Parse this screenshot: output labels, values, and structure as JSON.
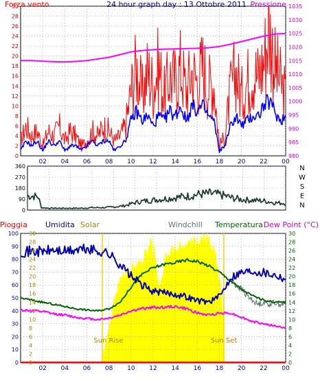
{
  "header": {
    "title": "24 hour graph day : 13 Ottobre 2011",
    "left_label": "Forza vento",
    "right_label": "Pressione"
  },
  "colors": {
    "wind": "#ff0000",
    "wind_avg": "#0000ff",
    "pressure": "#ff00ff",
    "left_axis": "#cc0000",
    "right_axis": "#cc00cc",
    "title": "#000080",
    "direction": "#1e3d32",
    "rain": "#ff0000",
    "humidity": "#0000b0",
    "solar": "#ffff00",
    "solar_label": "#b08000",
    "windchill": "#607070",
    "temperature": "#006400",
    "dewpoint": "#ff00ff",
    "gridline": "#909090",
    "time_axis": "#000080"
  },
  "chart_data": [
    {
      "type": "line",
      "name": "wind-pressure",
      "title": "24 hour graph day : 13 Ottobre 2011",
      "ylabel_left": "Forza vento",
      "ylabel_right": "Pressione",
      "x_ticks": [
        "02",
        "04",
        "06",
        "08",
        "10",
        "12",
        "14",
        "16",
        "18",
        "20",
        "22",
        "00"
      ],
      "x_range_hours": [
        0,
        24
      ],
      "y_left_ticks": [
        "0",
        "2",
        "4",
        "6",
        "8",
        "10",
        "12",
        "14",
        "16",
        "18",
        "20",
        "22",
        "24",
        "26",
        "28",
        "30"
      ],
      "ylim_left": [
        0,
        30
      ],
      "y_right_ticks": [
        "980",
        "985",
        "990",
        "995",
        "1000",
        "1005",
        "1010",
        "1015",
        "1020",
        "1025",
        "1030",
        "1035"
      ],
      "ylim_right": [
        980,
        1035
      ],
      "grid": true,
      "series": [
        {
          "key": "gust",
          "hours": [
            0,
            0.5,
            1,
            1.5,
            2,
            2.5,
            3,
            3.5,
            4,
            4.5,
            5,
            5.5,
            6,
            6.5,
            7,
            7.5,
            8,
            8.5,
            9,
            9.5,
            10,
            10.5,
            11,
            11.5,
            12,
            12.5,
            13,
            13.5,
            14,
            14.5,
            15,
            15.5,
            16,
            16.5,
            17,
            17.5,
            18,
            18.5,
            19,
            19.5,
            20,
            20.5,
            21,
            21.5,
            22,
            22.5,
            23,
            23.5,
            24
          ],
          "values": [
            3,
            6,
            4,
            5,
            2,
            5,
            4,
            6,
            3,
            5,
            4,
            2,
            3,
            5,
            4,
            6,
            5,
            3,
            4,
            6,
            13,
            18,
            12,
            17,
            14,
            18,
            12,
            16,
            15,
            18,
            13,
            17,
            15,
            18,
            14,
            15,
            2,
            4,
            13,
            17,
            12,
            15,
            17,
            16,
            19,
            26,
            18,
            15,
            12
          ]
        },
        {
          "key": "average",
          "hours": [
            0,
            0.5,
            1,
            1.5,
            2,
            2.5,
            3,
            3.5,
            4,
            4.5,
            5,
            5.5,
            6,
            6.5,
            7,
            7.5,
            8,
            8.5,
            9,
            9.5,
            10,
            10.5,
            11,
            11.5,
            12,
            12.5,
            13,
            13.5,
            14,
            14.5,
            15,
            15.5,
            16,
            16.5,
            17,
            17.5,
            18,
            18.5,
            19,
            19.5,
            20,
            20.5,
            21,
            21.5,
            22,
            22.5,
            23,
            23.5,
            24
          ],
          "values": [
            1,
            3,
            2,
            3,
            1,
            3,
            2,
            3,
            1,
            2,
            2,
            1,
            2,
            3,
            2,
            3,
            3,
            1,
            2,
            3,
            7,
            9,
            7,
            8,
            6,
            8,
            7,
            9,
            8,
            10,
            7,
            10,
            9,
            10,
            8,
            7,
            1,
            2,
            6,
            8,
            6,
            7,
            8,
            8,
            10,
            11,
            9,
            7,
            8
          ]
        },
        {
          "key": "pressure",
          "axis": "right",
          "hours": [
            0,
            1,
            2,
            3,
            4,
            5,
            6,
            7,
            8,
            9,
            10,
            11,
            12,
            13,
            14,
            15,
            16,
            17,
            18,
            19,
            20,
            21,
            22,
            23,
            24
          ],
          "values": [
            1015,
            1015,
            1014.8,
            1014.6,
            1014.5,
            1014.7,
            1015,
            1015.6,
            1016.2,
            1017.2,
            1018.2,
            1018.7,
            1019,
            1019.2,
            1019.3,
            1019.4,
            1019.5,
            1019.7,
            1020.2,
            1021,
            1022,
            1023,
            1024,
            1024.7,
            1025
          ]
        }
      ]
    },
    {
      "type": "line",
      "name": "wind-direction",
      "x_ticks": [
        "02",
        "04",
        "06",
        "08",
        "10",
        "12",
        "14",
        "16",
        "18",
        "20",
        "22",
        "00"
      ],
      "x_range_hours": [
        0,
        24
      ],
      "y_ticks": [
        "0",
        "90",
        "180",
        "270",
        "360"
      ],
      "ylim": [
        0,
        360
      ],
      "compass_labels": [
        "N",
        "W",
        "S",
        "E",
        "N"
      ],
      "grid": true,
      "series": [
        {
          "key": "direction",
          "hours": [
            0,
            0.5,
            1,
            1.3,
            2,
            3,
            4,
            5,
            6,
            7,
            8,
            9,
            10,
            10.5,
            11,
            12,
            13,
            14,
            15,
            16,
            17,
            18,
            19,
            20,
            21,
            22,
            23,
            24
          ],
          "values": [
            115,
            115,
            110,
            20,
            15,
            15,
            15,
            15,
            20,
            20,
            25,
            35,
            60,
            70,
            75,
            85,
            95,
            105,
            115,
            130,
            135,
            125,
            100,
            85,
            80,
            75,
            60,
            55
          ]
        }
      ]
    },
    {
      "type": "line",
      "name": "humidity-temperature",
      "labels": {
        "rain": "Pioggia",
        "humidity": "Umidita",
        "solar": "Solar",
        "windchill": "Windchill",
        "temperature": "Temperatura",
        "dewpoint": "Dew Point (°C)"
      },
      "annotations": {
        "sunrise": "Sun Rise",
        "sunset": "Sun Set"
      },
      "sunrise_hour": 7.4,
      "sunset_hour": 18.4,
      "x_ticks": [
        "02",
        "04",
        "06",
        "08",
        "10",
        "12",
        "14",
        "16",
        "18",
        "20",
        "22",
        "00"
      ],
      "x_range_hours": [
        0,
        24
      ],
      "y_humidity_ticks": [
        "0",
        "10",
        "20",
        "30",
        "40",
        "50",
        "60",
        "70",
        "80",
        "90",
        "100"
      ],
      "ylim_humidity": [
        0,
        100
      ],
      "y_solar_ticks": [
        "0",
        "2",
        "4",
        "6",
        "8",
        "10",
        "12",
        "14",
        "16",
        "18",
        "20",
        "22",
        "24",
        "26",
        "28",
        "30"
      ],
      "ylim_solar": [
        0,
        30
      ],
      "y_temp_ticks": [
        "0",
        "2",
        "4",
        "6",
        "8",
        "10",
        "12",
        "14",
        "16",
        "18",
        "20",
        "22",
        "24",
        "26",
        "28",
        "30"
      ],
      "ylim_temp": [
        0,
        30
      ],
      "grid": true,
      "series": [
        {
          "key": "humidity",
          "axis": "humidity",
          "hours": [
            0,
            1,
            2,
            3,
            4,
            5,
            6,
            6.5,
            7,
            7.5,
            8,
            9,
            10,
            11,
            12,
            13,
            14,
            15,
            16,
            17,
            18,
            18.5,
            19,
            20,
            21,
            22,
            23,
            24
          ],
          "values": [
            86,
            86,
            86,
            87,
            86,
            87,
            88,
            87,
            86,
            86,
            84,
            76,
            67,
            60,
            55,
            54,
            53,
            51,
            48,
            47,
            51,
            58,
            66,
            70,
            71,
            70,
            68,
            65
          ]
        },
        {
          "key": "temperature",
          "axis": "temp",
          "hours": [
            0,
            1,
            2,
            3,
            4,
            5,
            6,
            7,
            8,
            9,
            10,
            11,
            12,
            13,
            14,
            15,
            16,
            17,
            18,
            19,
            20,
            21,
            22,
            23,
            24
          ],
          "values": [
            15,
            14.5,
            14,
            13.5,
            13,
            12.5,
            12.2,
            12,
            12.5,
            14,
            17.5,
            20.5,
            22,
            22.8,
            23.2,
            23.8,
            23.5,
            22.5,
            21,
            19,
            17,
            15.5,
            14.5,
            14,
            14
          ]
        },
        {
          "key": "windchill",
          "axis": "temp",
          "hours": [
            19,
            20,
            20.5,
            21,
            21.5,
            22,
            22.5,
            23,
            23.5,
            24
          ],
          "values": [
            19,
            17,
            15.5,
            14.5,
            13.5,
            14,
            13.5,
            14,
            13.5,
            13.8
          ]
        },
        {
          "key": "dewpoint",
          "axis": "temp",
          "hours": [
            0,
            1,
            2,
            3,
            4,
            5,
            6,
            7,
            8,
            9,
            10,
            11,
            12,
            13,
            14,
            15,
            16,
            17,
            18,
            19,
            20,
            21,
            22,
            23,
            24
          ],
          "values": [
            12.2,
            12,
            11.8,
            11.3,
            11,
            10.5,
            10.2,
            10,
            10.3,
            11,
            12,
            12.5,
            12.8,
            12.8,
            13,
            12.5,
            11.5,
            11,
            11.5,
            11.5,
            10.5,
            9.5,
            9,
            8.5,
            8
          ]
        },
        {
          "key": "solar",
          "axis": "solar",
          "hours": [
            0,
            7.4,
            7.4,
            8,
            8.5,
            9,
            9.5,
            10,
            10.5,
            11,
            11.5,
            11.9,
            12,
            12.1,
            12.5,
            12.9,
            13,
            13.5,
            14,
            14.5,
            15,
            15.5,
            16,
            16.5,
            17,
            17.5,
            18,
            18.4,
            18.4,
            24
          ],
          "values": [
            0,
            0,
            1,
            8,
            15,
            19,
            21,
            22,
            23,
            24,
            26,
            29,
            22,
            27,
            18,
            20,
            25,
            26,
            27,
            27,
            28,
            28,
            28.5,
            29.5,
            29,
            27,
            20,
            10,
            0,
            0
          ]
        },
        {
          "key": "rain",
          "axis": "humidity",
          "hours": [
            0,
            24
          ],
          "values": [
            0,
            0
          ]
        }
      ]
    }
  ]
}
